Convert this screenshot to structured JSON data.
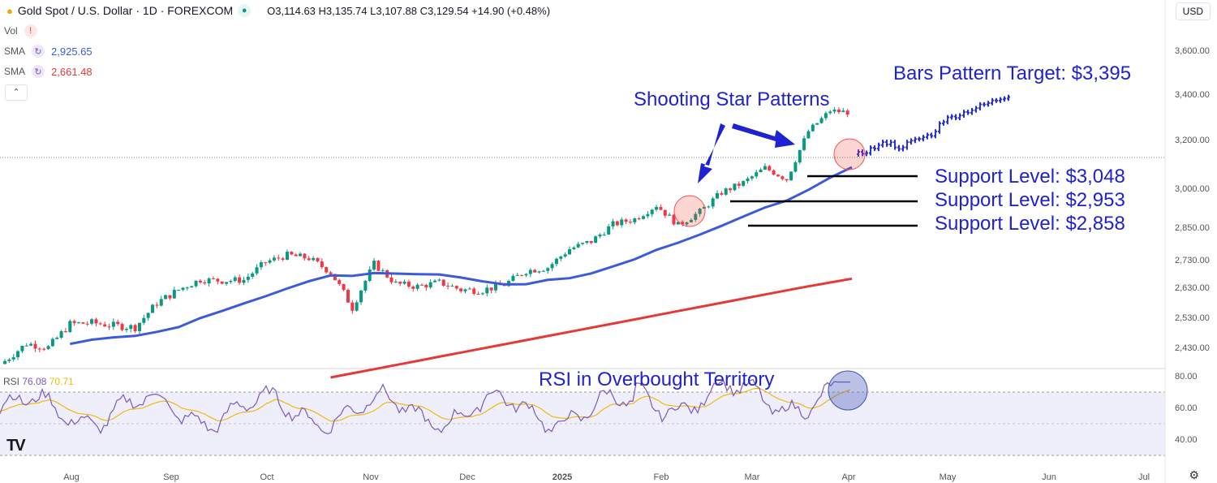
{
  "header": {
    "title": "Gold Spot / U.S. Dollar · 1D · FOREXCOM",
    "ohlc": "O3,114.63 H3,135.74 L3,107.88 C3,129.54 +14.90 (+0.48%)"
  },
  "indicators": {
    "vol_label": "Vol",
    "sma1": {
      "label": "SMA",
      "value": "2,925.65",
      "color": "#3b5bdb"
    },
    "sma2": {
      "label": "SMA",
      "value": "2,661.48",
      "color": "#e53935"
    }
  },
  "currency_label": "USD",
  "rsi_label": {
    "name": "RSI",
    "v1": "76.08",
    "v2": "70.71"
  },
  "annotations": {
    "target": "Bars Pattern Target: $3,395",
    "shooting_star": "Shooting Star Patterns",
    "support1": "Support Level: $3,048",
    "support2": "Support Level: $2,953",
    "support3": "Support Level: $2,858",
    "rsi_note": "RSI in Overbought Territory"
  },
  "chart_data": {
    "type": "candlestick",
    "title": "Gold Spot / U.S. Dollar · 1D · FOREXCOM",
    "price_ticks": [
      "3,600.00",
      "3,400.00",
      "3,200.00",
      "3,000.00",
      "2,850.00",
      "2,730.00",
      "2,630.00",
      "2,530.00",
      "2,430.00"
    ],
    "x_ticks": [
      "Aug",
      "Sep",
      "Oct",
      "Nov",
      "Dec",
      "2025",
      "Feb",
      "Mar",
      "Apr",
      "May",
      "Jun",
      "Jul"
    ],
    "rsi_ticks": [
      "80.00",
      "60.00",
      "40.00"
    ],
    "ohlc_series": [
      {
        "date": "2024-07-26",
        "close": 2385
      },
      {
        "date": "2024-08-02",
        "close": 2443
      },
      {
        "date": "2024-08-09",
        "close": 2430
      },
      {
        "date": "2024-08-16",
        "close": 2508
      },
      {
        "date": "2024-08-23",
        "close": 2512
      },
      {
        "date": "2024-08-30",
        "close": 2503
      },
      {
        "date": "2024-09-06",
        "close": 2497
      },
      {
        "date": "2024-09-13",
        "close": 2578
      },
      {
        "date": "2024-09-20",
        "close": 2622
      },
      {
        "date": "2024-09-27",
        "close": 2658
      },
      {
        "date": "2024-10-04",
        "close": 2654
      },
      {
        "date": "2024-10-11",
        "close": 2657
      },
      {
        "date": "2024-10-18",
        "close": 2721
      },
      {
        "date": "2024-10-25",
        "close": 2747
      },
      {
        "date": "2024-11-01",
        "close": 2736
      },
      {
        "date": "2024-11-08",
        "close": 2685
      },
      {
        "date": "2024-11-15",
        "close": 2562
      },
      {
        "date": "2024-11-22",
        "close": 2715
      },
      {
        "date": "2024-11-29",
        "close": 2643
      },
      {
        "date": "2024-12-06",
        "close": 2633
      },
      {
        "date": "2024-12-13",
        "close": 2648
      },
      {
        "date": "2024-12-20",
        "close": 2622
      },
      {
        "date": "2024-12-27",
        "close": 2621
      },
      {
        "date": "2025-01-03",
        "close": 2640
      },
      {
        "date": "2025-01-10",
        "close": 2690
      },
      {
        "date": "2025-01-17",
        "close": 2702
      },
      {
        "date": "2025-01-24",
        "close": 2770
      },
      {
        "date": "2025-01-31",
        "close": 2798
      },
      {
        "date": "2025-02-07",
        "close": 2861
      },
      {
        "date": "2025-02-14",
        "close": 2882
      },
      {
        "date": "2025-02-21",
        "close": 2935
      },
      {
        "date": "2025-02-28",
        "close": 2858
      },
      {
        "date": "2025-03-07",
        "close": 2910
      },
      {
        "date": "2025-03-14",
        "close": 2984
      },
      {
        "date": "2025-03-21",
        "close": 3023
      },
      {
        "date": "2025-03-28",
        "close": 3084
      },
      {
        "date": "2025-04-04",
        "close": 3037
      },
      {
        "date": "2025-04-11",
        "close": 3237
      },
      {
        "date": "2025-04-18",
        "close": 3327
      },
      {
        "date": "2025-04-25",
        "close": 3319
      }
    ],
    "sma_50": {
      "name": "SMA",
      "last": 2925.65,
      "color": "#3b5bdb"
    },
    "sma_200": {
      "name": "SMA",
      "last": 2661.48,
      "color": "#e53935"
    },
    "support_levels": [
      3048,
      2953,
      2858
    ],
    "projected_target": 3395,
    "rsi": {
      "name": "RSI",
      "values": [
        76.08,
        70.71
      ],
      "overbought": 70,
      "oversold": 30
    },
    "grid": false,
    "legend": "top-left"
  }
}
